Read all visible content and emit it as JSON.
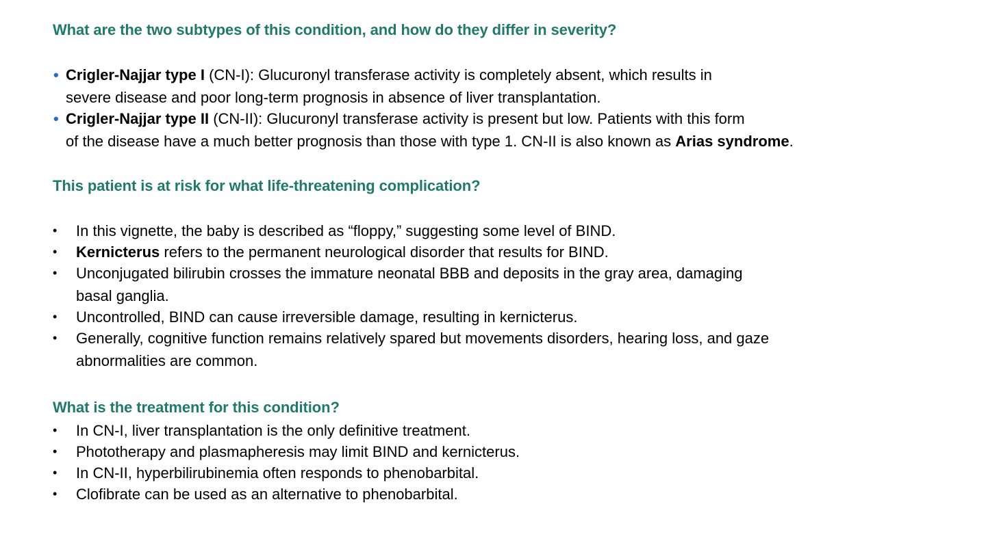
{
  "section1": {
    "heading": "What are the two subtypes of this condition, and how do they differ in severity?",
    "items": [
      {
        "bold": "Crigler-Najjar type I",
        "line1_rest": " (CN-I): Glucuronyl transferase activity is completely absent, which results in",
        "line2": "severe disease and poor long-term prognosis in absence of liver transplantation."
      },
      {
        "bold": "Crigler-Najjar type II",
        "line1_rest": " (CN-II): Glucuronyl transferase activity is present but low. Patients with this form",
        "line2_pre": "of the disease have a much better prognosis than those with type 1. CN-II is also known as ",
        "line2_bold": "Arias syndrome",
        "line2_post": "."
      }
    ]
  },
  "section2": {
    "heading": "This patient is at risk for what life-threatening complication?",
    "items": [
      {
        "line1": "In this vignette, the baby is described as “floppy,” suggesting some level of BIND."
      },
      {
        "bold": "Kernicterus",
        "line1_rest": " refers to the permanent neurological disorder that results for BIND."
      },
      {
        "line1": "Unconjugated bilirubin crosses the immature neonatal BBB and deposits in the gray area, damaging",
        "line2": "basal ganglia."
      },
      {
        "line1": "Uncontrolled, BIND can cause irreversible damage, resulting in kernicterus."
      },
      {
        "line1": "Generally, cognitive function remains relatively spared but movements disorders, hearing loss, and gaze",
        "line2": "abnormalities are common."
      }
    ]
  },
  "section3": {
    "heading": "What is the treatment for this condition?",
    "items": [
      "In CN-I, liver transplantation is the only definitive treatment.",
      "Phototherapy and plasmapheresis may limit BIND and kernicterus.",
      "In CN-II, hyperbilirubinemia often responds to phenobarbital.",
      "Clofibrate can be used as an alternative to phenobarbital."
    ]
  },
  "bullets": {
    "section1": "•",
    "standard": "•"
  },
  "colors": {
    "heading": "#1f7a6a",
    "section1_bullet": "#1f6fd1",
    "text": "#000000"
  }
}
